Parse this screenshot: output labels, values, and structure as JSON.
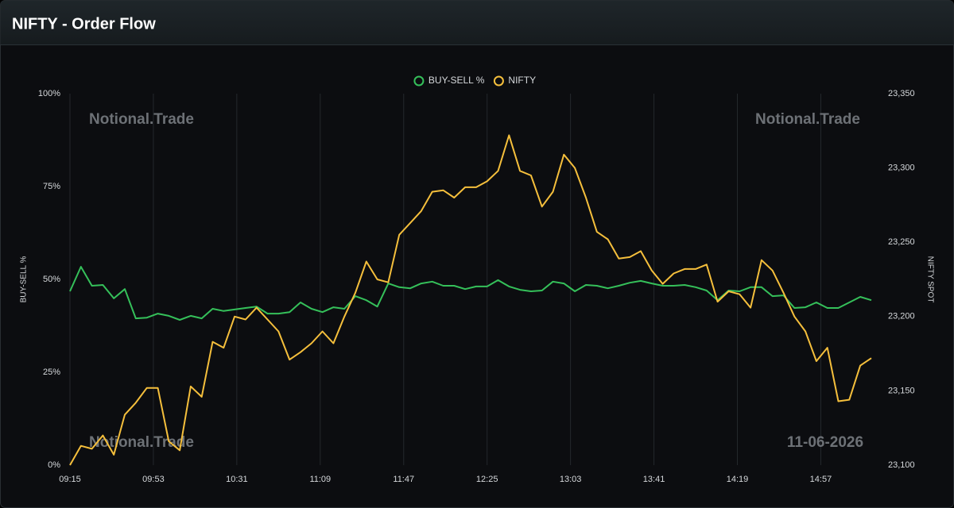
{
  "header": {
    "title": "NIFTY - Order Flow"
  },
  "chart_data": {
    "type": "line",
    "watermarks": [
      "Notional.Trade",
      "Notional.Trade",
      "Notional.Trade"
    ],
    "date_stamp": "11-06-2026",
    "y_label": "BUY-SELL %",
    "y2_label": "NIFTY SPOT",
    "x": [
      555,
      560,
      565,
      570,
      575,
      580,
      585,
      590,
      595,
      600,
      605,
      610,
      615,
      620,
      625,
      630,
      635,
      640,
      645,
      650,
      655,
      660,
      665,
      670,
      675,
      680,
      685,
      690,
      695,
      700,
      705,
      710,
      715,
      720,
      725,
      730,
      735,
      740,
      745,
      750,
      755,
      760,
      765,
      770,
      775,
      780,
      785,
      790,
      795,
      800,
      805,
      810,
      815,
      820,
      825,
      830,
      835,
      840,
      845,
      850,
      855,
      860,
      865,
      870,
      875,
      880,
      885,
      890,
      895,
      900,
      905,
      910,
      915,
      920
    ],
    "xlim": [
      555,
      924
    ],
    "xticks": [
      {
        "value": 555,
        "label": "09:15"
      },
      {
        "value": 593,
        "label": "09:53"
      },
      {
        "value": 631,
        "label": "10:31"
      },
      {
        "value": 669,
        "label": "11:09"
      },
      {
        "value": 707,
        "label": "11:47"
      },
      {
        "value": 745,
        "label": "12:25"
      },
      {
        "value": 783,
        "label": "13:03"
      },
      {
        "value": 821,
        "label": "13:41"
      },
      {
        "value": 859,
        "label": "14:19"
      },
      {
        "value": 897,
        "label": "14:57"
      }
    ],
    "ylim": [
      0,
      100
    ],
    "yticks": [
      {
        "value": 0,
        "label": "0%"
      },
      {
        "value": 25,
        "label": "25%"
      },
      {
        "value": 50,
        "label": "50%"
      },
      {
        "value": 75,
        "label": "75%"
      },
      {
        "value": 100,
        "label": "100%"
      }
    ],
    "y2lim": [
      23100,
      23350
    ],
    "y2ticks": [
      {
        "value": 23100,
        "label": "23,100"
      },
      {
        "value": 23150,
        "label": "23,150"
      },
      {
        "value": 23200,
        "label": "23,200"
      },
      {
        "value": 23250,
        "label": "23,250"
      },
      {
        "value": 23300,
        "label": "23,300"
      },
      {
        "value": 23350,
        "label": "23,350"
      }
    ],
    "grid": "x",
    "legend": "top",
    "series": [
      {
        "name": "BUY-SELL %",
        "color": "#35c05a",
        "values": [
          46.8,
          53.4,
          48.3,
          48.5,
          44.9,
          47.4,
          39.5,
          39.7,
          40.8,
          40.2,
          39.1,
          40.2,
          39.5,
          42.1,
          41.5,
          41.9,
          42.3,
          42.7,
          40.8,
          40.8,
          41.2,
          43.8,
          42.1,
          41.2,
          42.5,
          42.1,
          45.5,
          44.4,
          42.7,
          48.9,
          47.9,
          47.6,
          48.9,
          49.4,
          48.3,
          48.3,
          47.4,
          48.1,
          48.1,
          49.8,
          48.1,
          47.2,
          46.8,
          47.0,
          49.4,
          48.9,
          46.8,
          48.5,
          48.3,
          47.6,
          48.3,
          49.1,
          49.6,
          48.9,
          48.3,
          48.3,
          48.5,
          47.9,
          47.0,
          44.4,
          47.0,
          46.8,
          47.9,
          47.9,
          45.5,
          45.7,
          42.3,
          42.5,
          43.8,
          42.3,
          42.3,
          43.8,
          45.3,
          44.4
        ]
      },
      {
        "name": "NIFTY",
        "color": "#f5bf3c",
        "axis": "y2",
        "values": [
          23100,
          23113,
          23111,
          23120,
          23107,
          23134,
          23142,
          23152,
          23152,
          23116,
          23110,
          23153,
          23146,
          23183,
          23179,
          23200,
          23198,
          23206,
          23198,
          23190,
          23171,
          23176,
          23182,
          23190,
          23182,
          23200,
          23216,
          23237,
          23225,
          23223,
          23255,
          23263,
          23271,
          23284,
          23285,
          23280,
          23287,
          23287,
          23291,
          23298,
          23322,
          23298,
          23295,
          23274,
          23284,
          23309,
          23300,
          23280,
          23257,
          23252,
          23239,
          23240,
          23244,
          23231,
          23222,
          23229,
          23232,
          23232,
          23235,
          23210,
          23217,
          23215,
          23206,
          23238,
          23231,
          23216,
          23200,
          23190,
          23170,
          23179,
          23143,
          23144,
          23167,
          23172
        ]
      }
    ]
  }
}
